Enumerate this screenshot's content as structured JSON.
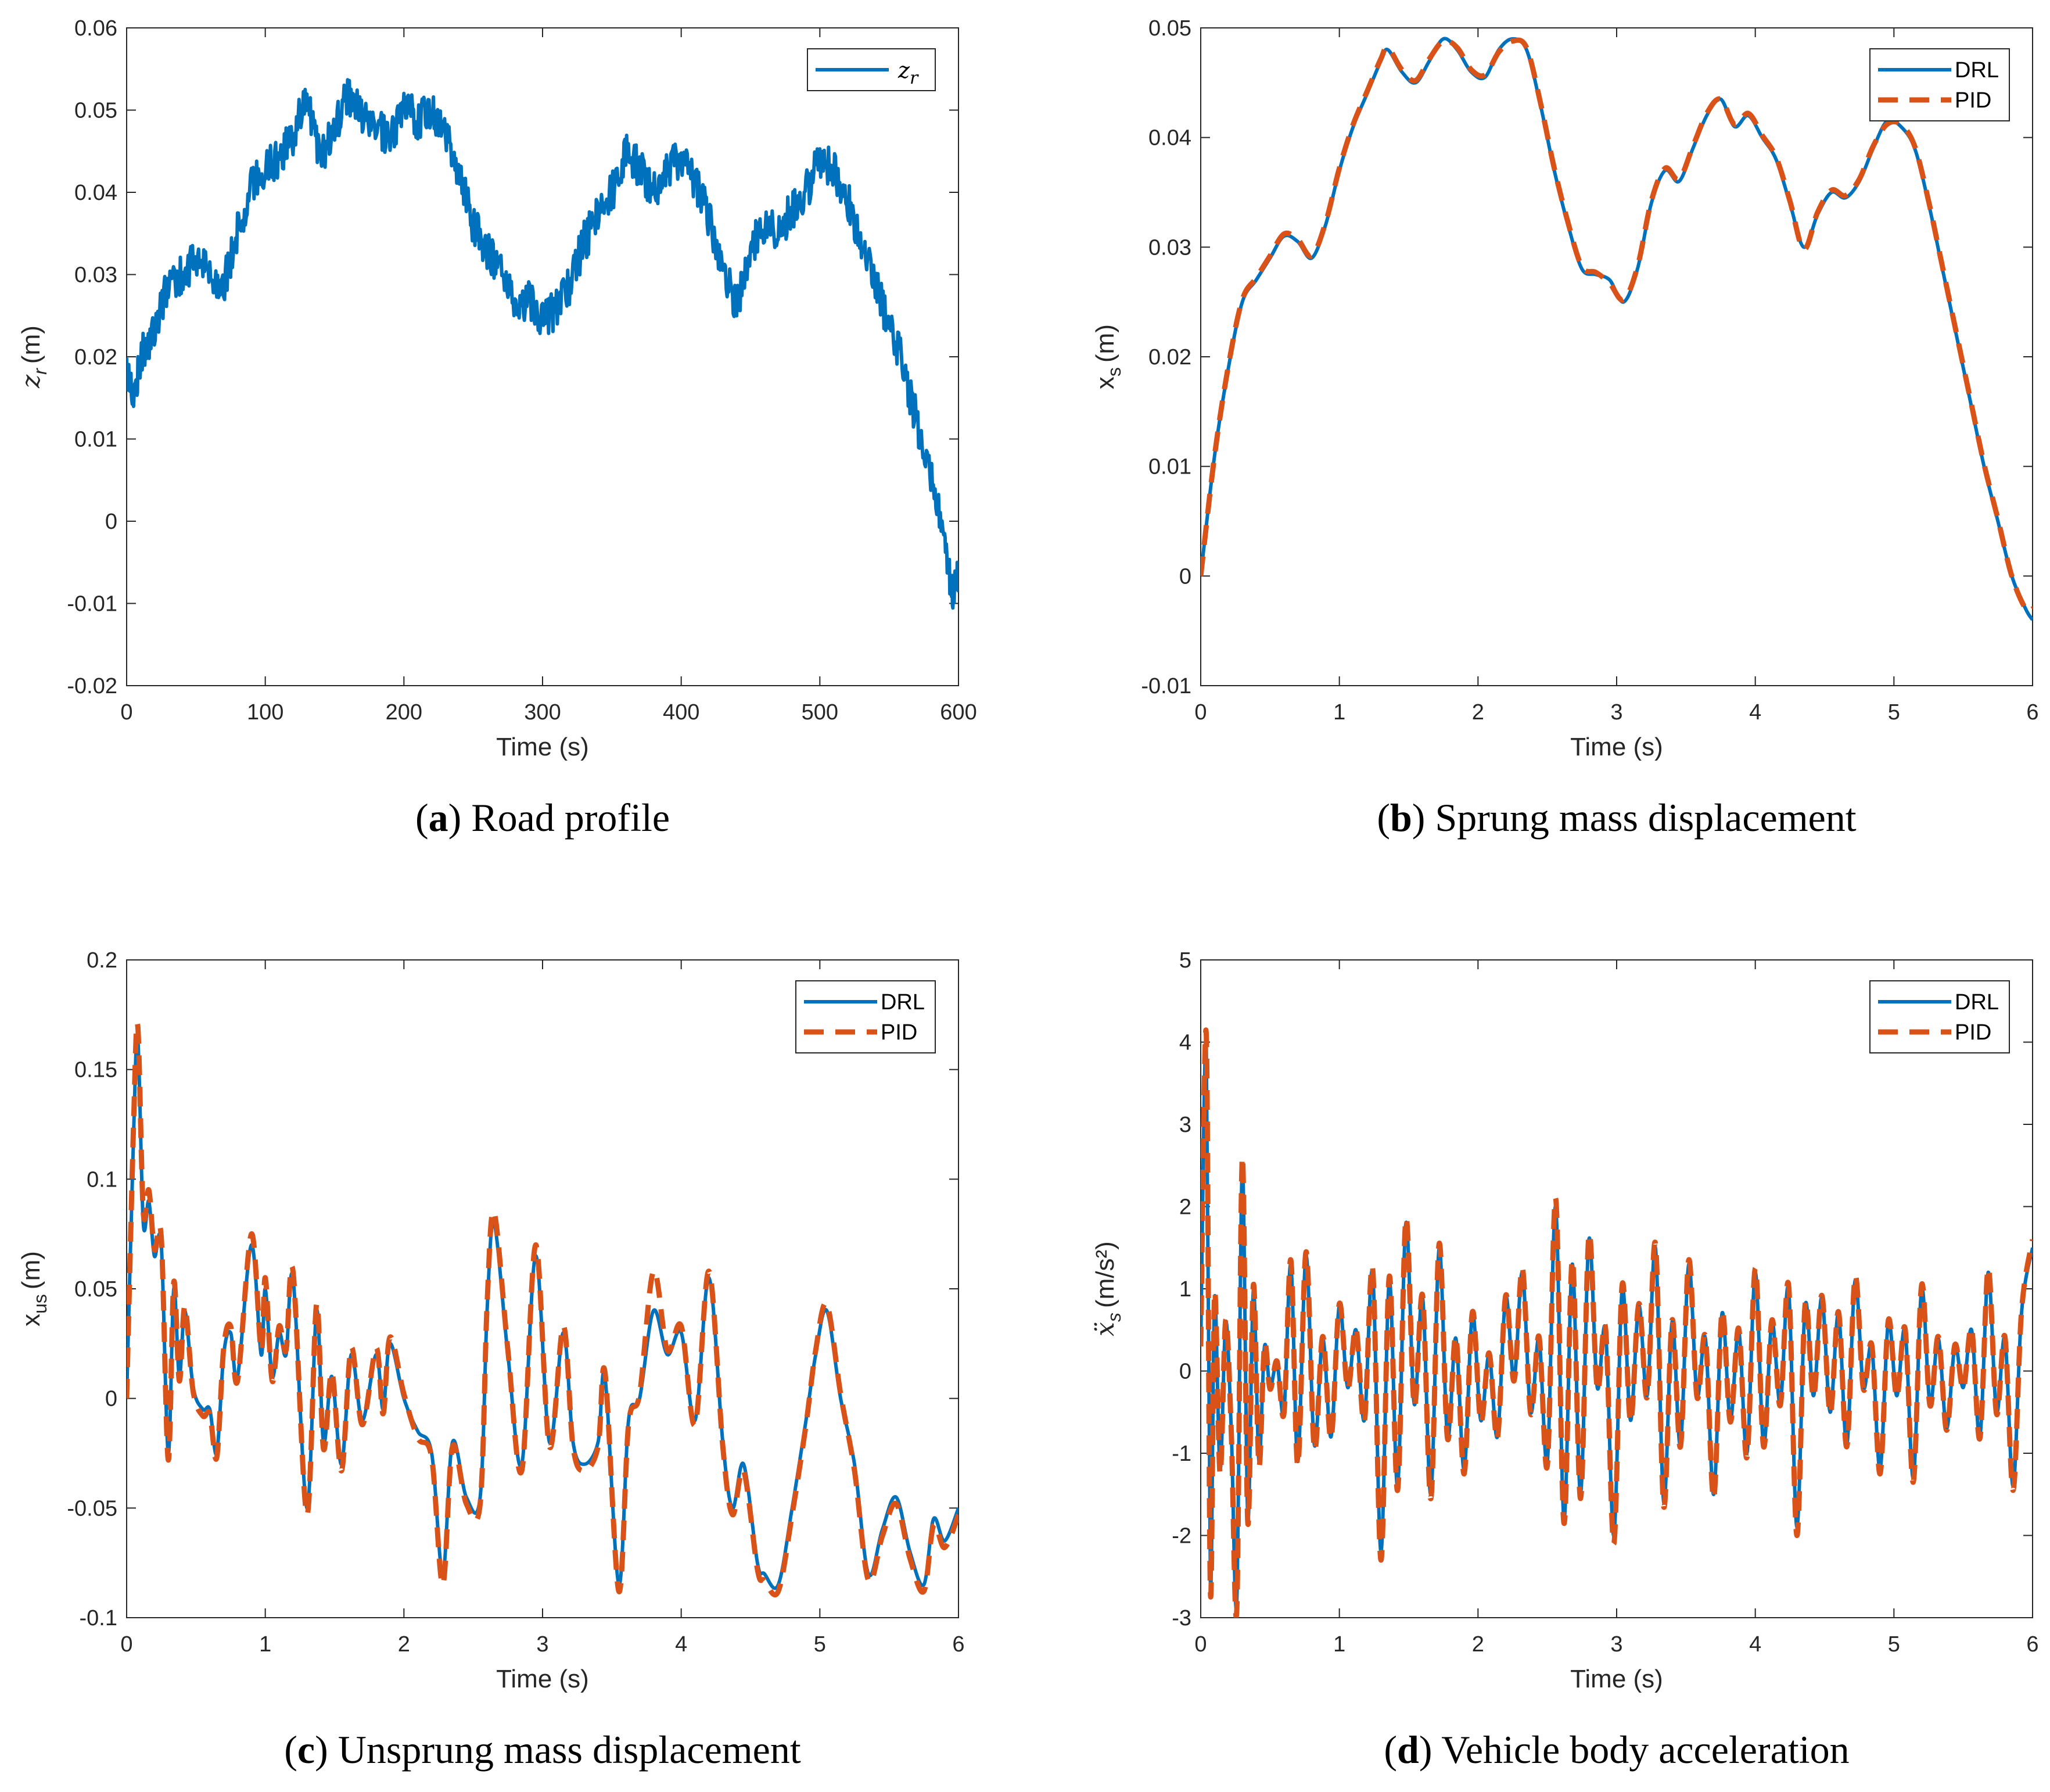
{
  "colors": {
    "drl": "#0072BD",
    "pid": "#D95319",
    "axis": "#262626",
    "background": "#FFFFFF"
  },
  "chart_data": [
    {
      "id": "a",
      "type": "line",
      "caption_letter": "a",
      "caption_text": ") Road profile",
      "xlabel": "Time (s)",
      "ylabel": "z_r (m)",
      "ylabel_var": "z",
      "ylabel_sub": "r",
      "ylabel_unit": "(m)",
      "xlim": [
        0,
        600
      ],
      "ylim": [
        -0.02,
        0.06
      ],
      "xticks": [
        0,
        100,
        200,
        300,
        400,
        500,
        600
      ],
      "xtick_labels": [
        "0",
        "100",
        "200",
        "300",
        "400",
        "500",
        "600"
      ],
      "yticks": [
        -0.02,
        -0.01,
        0,
        0.01,
        0.02,
        0.03,
        0.04,
        0.05,
        0.06
      ],
      "ytick_labels": [
        "-0.02",
        "-0.01",
        "0",
        "0.01",
        "0.02",
        "0.03",
        "0.04",
        "0.05",
        "0.06"
      ],
      "legend_position": "top-right",
      "series": [
        {
          "name": "z_r",
          "legend_var": "z",
          "legend_sub": "r",
          "style": "solid",
          "color_key": "drl",
          "noise": 0.0025,
          "x": [
            0,
            5,
            10,
            20,
            30,
            40,
            50,
            60,
            70,
            80,
            90,
            100,
            110,
            120,
            130,
            140,
            150,
            160,
            170,
            180,
            190,
            200,
            210,
            220,
            230,
            240,
            250,
            260,
            270,
            280,
            290,
            300,
            310,
            320,
            330,
            340,
            350,
            360,
            370,
            380,
            390,
            400,
            410,
            420,
            430,
            440,
            450,
            460,
            470,
            480,
            490,
            500,
            510,
            520,
            530,
            540,
            550,
            560,
            570,
            580,
            590,
            595,
            600
          ],
          "y": [
            0.019,
            0.015,
            0.02,
            0.023,
            0.029,
            0.03,
            0.032,
            0.03,
            0.029,
            0.035,
            0.041,
            0.043,
            0.044,
            0.047,
            0.052,
            0.044,
            0.048,
            0.052,
            0.049,
            0.048,
            0.046,
            0.05,
            0.049,
            0.05,
            0.047,
            0.042,
            0.036,
            0.033,
            0.03,
            0.026,
            0.027,
            0.024,
            0.026,
            0.029,
            0.034,
            0.037,
            0.04,
            0.045,
            0.043,
            0.04,
            0.043,
            0.044,
            0.041,
            0.037,
            0.031,
            0.026,
            0.033,
            0.036,
            0.035,
            0.038,
            0.04,
            0.044,
            0.043,
            0.039,
            0.034,
            0.029,
            0.024,
            0.019,
            0.012,
            0.006,
            -0.002,
            -0.009,
            -0.006
          ]
        }
      ]
    },
    {
      "id": "b",
      "type": "line",
      "caption_letter": "b",
      "caption_text": ") Sprung mass displacement",
      "xlabel": "Time (s)",
      "ylabel": "x_s (m)",
      "ylabel_var": "x",
      "ylabel_sub": "s",
      "ylabel_unit": "(m)",
      "xlim": [
        0,
        6
      ],
      "ylim": [
        -0.01,
        0.05
      ],
      "xticks": [
        0,
        1,
        2,
        3,
        4,
        5,
        6
      ],
      "xtick_labels": [
        "0",
        "1",
        "2",
        "3",
        "4",
        "5",
        "6"
      ],
      "yticks": [
        -0.01,
        0,
        0.01,
        0.02,
        0.03,
        0.04,
        0.05
      ],
      "ytick_labels": [
        "-0.01",
        "0",
        "0.01",
        "0.02",
        "0.03",
        "0.04",
        "0.05"
      ],
      "legend_position": "top-right",
      "x": [
        0,
        0.1,
        0.2,
        0.3,
        0.4,
        0.5,
        0.6,
        0.7,
        0.8,
        0.9,
        1.0,
        1.1,
        1.2,
        1.3,
        1.35,
        1.45,
        1.55,
        1.65,
        1.75,
        1.85,
        1.95,
        2.05,
        2.15,
        2.25,
        2.35,
        2.45,
        2.55,
        2.65,
        2.75,
        2.85,
        2.95,
        3.05,
        3.15,
        3.25,
        3.35,
        3.45,
        3.55,
        3.65,
        3.75,
        3.85,
        3.95,
        4.05,
        4.15,
        4.25,
        4.35,
        4.45,
        4.55,
        4.65,
        4.75,
        4.85,
        4.95,
        5.05,
        5.15,
        5.25,
        5.35,
        5.45,
        5.55,
        5.65,
        5.75,
        5.85,
        5.95,
        6.0
      ],
      "series": [
        {
          "name": "DRL",
          "style": "solid",
          "color_key": "drl",
          "y": [
            0.0,
            0.011,
            0.019,
            0.025,
            0.027,
            0.029,
            0.031,
            0.0305,
            0.029,
            0.032,
            0.037,
            0.041,
            0.044,
            0.047,
            0.048,
            0.046,
            0.045,
            0.047,
            0.049,
            0.048,
            0.046,
            0.0455,
            0.048,
            0.049,
            0.048,
            0.043,
            0.037,
            0.032,
            0.028,
            0.0275,
            0.027,
            0.025,
            0.028,
            0.034,
            0.037,
            0.036,
            0.039,
            0.042,
            0.0435,
            0.041,
            0.042,
            0.04,
            0.038,
            0.034,
            0.03,
            0.033,
            0.035,
            0.0345,
            0.036,
            0.039,
            0.0415,
            0.041,
            0.039,
            0.034,
            0.028,
            0.022,
            0.016,
            0.01,
            0.005,
            0.0,
            -0.003,
            -0.004
          ]
        },
        {
          "name": "PID",
          "style": "dashed",
          "color_key": "pid",
          "y": [
            0.0,
            0.011,
            0.0192,
            0.0252,
            0.0272,
            0.0292,
            0.0312,
            0.0307,
            0.0292,
            0.0322,
            0.0372,
            0.0412,
            0.0442,
            0.0472,
            0.0482,
            0.0462,
            0.0452,
            0.0472,
            0.0488,
            0.0482,
            0.0462,
            0.0457,
            0.0478,
            0.0488,
            0.0482,
            0.0432,
            0.0372,
            0.0322,
            0.0282,
            0.0277,
            0.0267,
            0.0252,
            0.0282,
            0.0342,
            0.0372,
            0.0362,
            0.0392,
            0.0422,
            0.0435,
            0.0412,
            0.0422,
            0.0402,
            0.0382,
            0.0342,
            0.0298,
            0.0332,
            0.0352,
            0.0347,
            0.0362,
            0.0392,
            0.0412,
            0.0412,
            0.0392,
            0.0342,
            0.0282,
            0.0222,
            0.0162,
            0.0102,
            0.0052,
            0.0,
            -0.003,
            -0.003
          ]
        }
      ]
    },
    {
      "id": "c",
      "type": "line",
      "caption_letter": "c",
      "caption_text": ") Unsprung mass displacement",
      "xlabel": "Time (s)",
      "ylabel": "x_us (m)",
      "ylabel_var": "x",
      "ylabel_sub": "us",
      "ylabel_unit": "(m)",
      "xlim": [
        0,
        6
      ],
      "ylim": [
        -0.1,
        0.2
      ],
      "xticks": [
        0,
        1,
        2,
        3,
        4,
        5,
        6
      ],
      "xtick_labels": [
        "0",
        "1",
        "2",
        "3",
        "4",
        "5",
        "6"
      ],
      "yticks": [
        -0.1,
        -0.05,
        0,
        0.05,
        0.1,
        0.15,
        0.2
      ],
      "ytick_labels": [
        "-0.1",
        "-0.05",
        "0",
        "0.05",
        "0.1",
        "0.15",
        "0.2"
      ],
      "legend_position": "top-right",
      "x": [
        0,
        0.05,
        0.08,
        0.12,
        0.16,
        0.2,
        0.25,
        0.3,
        0.34,
        0.38,
        0.42,
        0.48,
        0.55,
        0.6,
        0.65,
        0.7,
        0.75,
        0.8,
        0.9,
        0.97,
        1.0,
        1.05,
        1.1,
        1.15,
        1.2,
        1.3,
        1.37,
        1.42,
        1.48,
        1.55,
        1.62,
        1.7,
        1.8,
        1.85,
        1.9,
        2.0,
        2.1,
        2.2,
        2.28,
        2.35,
        2.45,
        2.55,
        2.6,
        2.65,
        2.75,
        2.85,
        2.95,
        3.05,
        3.15,
        3.22,
        3.3,
        3.4,
        3.45,
        3.55,
        3.62,
        3.7,
        3.8,
        3.9,
        4.0,
        4.1,
        4.2,
        4.3,
        4.37,
        4.45,
        4.55,
        4.6,
        4.7,
        4.8,
        4.9,
        4.97,
        5.05,
        5.15,
        5.25,
        5.35,
        5.45,
        5.55,
        5.65,
        5.75,
        5.82,
        5.9,
        6.0
      ],
      "series": [
        {
          "name": "DRL",
          "style": "solid",
          "color_key": "drl",
          "y": [
            0.0,
            0.12,
            0.165,
            0.08,
            0.09,
            0.065,
            0.07,
            -0.025,
            0.05,
            0.01,
            0.04,
            0.005,
            -0.005,
            -0.005,
            -0.025,
            0.02,
            0.03,
            0.01,
            0.07,
            0.02,
            0.05,
            0.01,
            0.03,
            0.02,
            0.055,
            -0.05,
            0.04,
            -0.02,
            0.01,
            -0.03,
            0.02,
            -0.01,
            0.02,
            -0.005,
            0.025,
            0.0,
            -0.015,
            -0.025,
            -0.08,
            -0.02,
            -0.045,
            -0.045,
            0.04,
            0.08,
            0.02,
            -0.03,
            0.065,
            -0.02,
            0.03,
            -0.02,
            -0.03,
            -0.02,
            0.01,
            -0.085,
            -0.01,
            0.0,
            0.04,
            0.02,
            0.03,
            -0.01,
            0.055,
            -0.02,
            -0.05,
            -0.03,
            -0.075,
            -0.08,
            -0.085,
            -0.05,
            -0.01,
            0.02,
            0.04,
            0.0,
            -0.03,
            -0.08,
            -0.06,
            -0.045,
            -0.07,
            -0.085,
            -0.055,
            -0.065,
            -0.05
          ]
        },
        {
          "name": "PID",
          "style": "dashed",
          "color_key": "pid",
          "y": [
            0.0,
            0.125,
            0.17,
            0.085,
            0.095,
            0.068,
            0.073,
            -0.028,
            0.053,
            0.008,
            0.042,
            0.003,
            -0.008,
            -0.007,
            -0.027,
            0.023,
            0.033,
            0.008,
            0.075,
            0.022,
            0.055,
            0.008,
            0.033,
            0.022,
            0.058,
            -0.053,
            0.043,
            -0.023,
            0.012,
            -0.033,
            0.023,
            -0.012,
            0.023,
            -0.007,
            0.028,
            0.002,
            -0.018,
            -0.027,
            -0.085,
            -0.022,
            -0.048,
            -0.048,
            0.043,
            0.085,
            0.022,
            -0.033,
            0.07,
            -0.022,
            0.033,
            -0.022,
            -0.033,
            -0.022,
            0.012,
            -0.088,
            -0.012,
            0.002,
            0.058,
            0.022,
            0.033,
            -0.012,
            0.058,
            -0.022,
            -0.053,
            -0.033,
            -0.078,
            -0.083,
            -0.088,
            -0.053,
            -0.012,
            0.022,
            0.043,
            0.002,
            -0.033,
            -0.083,
            -0.063,
            -0.048,
            -0.073,
            -0.088,
            -0.058,
            -0.068,
            -0.053
          ]
        }
      ]
    },
    {
      "id": "d",
      "type": "line",
      "caption_letter": "d",
      "caption_text": ") Vehicle body acceleration",
      "xlabel": "Time (s)",
      "ylabel": "ẍ_s (m/s²)",
      "ylabel_var": "ẍ",
      "ylabel_sub": "s",
      "ylabel_unit": "(m/s²)",
      "xlim": [
        0,
        6
      ],
      "ylim": [
        -3,
        5
      ],
      "xticks": [
        0,
        1,
        2,
        3,
        4,
        5,
        6
      ],
      "xtick_labels": [
        "0",
        "1",
        "2",
        "3",
        "4",
        "5",
        "6"
      ],
      "yticks": [
        -3,
        -2,
        -1,
        0,
        1,
        2,
        3,
        4,
        5
      ],
      "ytick_labels": [
        "-3",
        "-2",
        "-1",
        "0",
        "1",
        "2",
        "3",
        "4",
        "5"
      ],
      "legend_position": "top-right",
      "x": [
        0,
        0.04,
        0.07,
        0.1,
        0.14,
        0.18,
        0.22,
        0.26,
        0.3,
        0.34,
        0.38,
        0.42,
        0.46,
        0.5,
        0.55,
        0.6,
        0.65,
        0.7,
        0.76,
        0.82,
        0.88,
        0.94,
        1.0,
        1.06,
        1.12,
        1.18,
        1.24,
        1.3,
        1.36,
        1.42,
        1.48,
        1.54,
        1.6,
        1.66,
        1.72,
        1.78,
        1.84,
        1.9,
        1.96,
        2.02,
        2.08,
        2.14,
        2.2,
        2.26,
        2.32,
        2.38,
        2.44,
        2.5,
        2.56,
        2.62,
        2.68,
        2.74,
        2.8,
        2.86,
        2.92,
        2.98,
        3.04,
        3.1,
        3.16,
        3.22,
        3.28,
        3.34,
        3.4,
        3.46,
        3.52,
        3.58,
        3.64,
        3.7,
        3.76,
        3.82,
        3.88,
        3.94,
        4.0,
        4.06,
        4.12,
        4.18,
        4.24,
        4.3,
        4.36,
        4.42,
        4.48,
        4.54,
        4.6,
        4.66,
        4.72,
        4.78,
        4.84,
        4.9,
        4.96,
        5.02,
        5.08,
        5.14,
        5.2,
        5.26,
        5.32,
        5.38,
        5.44,
        5.5,
        5.56,
        5.62,
        5.68,
        5.74,
        5.8,
        5.86,
        5.92,
        6.0
      ],
      "series": [
        {
          "name": "DRL",
          "style": "solid",
          "color_key": "drl",
          "y": [
            0.3,
            4.0,
            -2.6,
            0.9,
            -1.2,
            0.6,
            -0.7,
            -2.8,
            2.5,
            -1.8,
            1.0,
            -1.1,
            0.3,
            -0.2,
            0.1,
            -0.5,
            1.3,
            -1.1,
            1.4,
            -0.9,
            0.4,
            -0.8,
            0.8,
            -0.2,
            0.5,
            -0.6,
            1.2,
            -2.2,
            1.1,
            -1.4,
            1.8,
            -0.4,
            0.9,
            -1.5,
            1.5,
            -0.8,
            0.4,
            -1.2,
            0.7,
            -0.6,
            0.2,
            -0.8,
            0.9,
            -0.1,
            1.2,
            -0.5,
            0.4,
            -1.1,
            2.0,
            -1.8,
            1.3,
            -1.5,
            1.6,
            -0.2,
            0.5,
            -2.0,
            1.0,
            -0.6,
            0.8,
            -0.3,
            1.5,
            -1.6,
            0.6,
            -0.9,
            1.3,
            -0.3,
            0.4,
            -1.5,
            0.7,
            -0.6,
            0.5,
            -1.0,
            1.2,
            -0.9,
            0.6,
            -0.4,
            1.0,
            -1.9,
            0.8,
            -0.3,
            0.9,
            -0.5,
            0.7,
            -0.9,
            1.1,
            -0.2,
            0.3,
            -1.2,
            0.6,
            -0.3,
            0.5,
            -1.3,
            1.0,
            -0.4,
            0.4,
            -0.7,
            0.3,
            -0.2,
            0.5,
            -0.8,
            1.2,
            -0.5,
            0.4,
            -1.4,
            0.7,
            1.5
          ]
        },
        {
          "name": "PID",
          "style": "dashed",
          "color_key": "pid",
          "y": [
            0.3,
            4.1,
            -2.7,
            0.95,
            -1.25,
            0.62,
            -0.72,
            -2.9,
            2.6,
            -1.85,
            1.05,
            -1.15,
            0.32,
            -0.22,
            0.12,
            -0.52,
            1.35,
            -1.15,
            1.45,
            -0.95,
            0.42,
            -0.82,
            0.82,
            -0.22,
            0.52,
            -0.62,
            1.25,
            -2.3,
            1.15,
            -1.45,
            1.85,
            -0.42,
            0.92,
            -1.55,
            1.55,
            -0.82,
            0.42,
            -1.25,
            0.72,
            -0.62,
            0.22,
            -0.82,
            0.92,
            -0.12,
            1.25,
            -0.52,
            0.42,
            -1.15,
            2.1,
            -1.85,
            1.35,
            -1.55,
            1.65,
            -0.22,
            0.52,
            -2.1,
            1.05,
            -0.62,
            0.82,
            -0.32,
            1.55,
            -1.65,
            0.62,
            -0.92,
            1.35,
            -0.32,
            0.42,
            -1.55,
            0.72,
            -0.62,
            0.52,
            -1.05,
            1.25,
            -0.92,
            0.62,
            -0.42,
            1.05,
            -2.0,
            0.82,
            -0.32,
            0.92,
            -0.52,
            0.72,
            -0.92,
            1.15,
            -0.22,
            0.32,
            -1.25,
            0.62,
            -0.32,
            0.52,
            -1.35,
            1.05,
            -0.42,
            0.42,
            -0.72,
            0.32,
            -0.22,
            0.52,
            -0.82,
            1.25,
            -0.52,
            0.42,
            -1.45,
            0.72,
            1.6
          ]
        }
      ]
    }
  ]
}
